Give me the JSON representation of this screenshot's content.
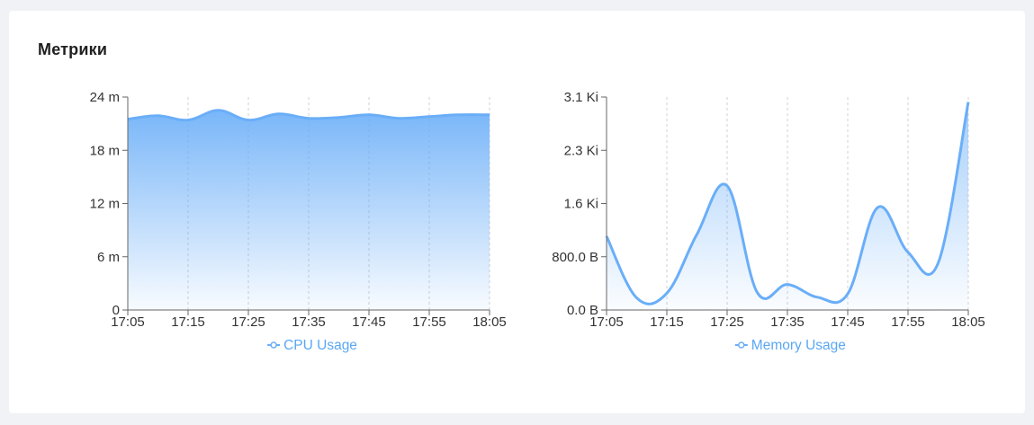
{
  "card": {
    "title": "Метрики"
  },
  "chart_data": [
    {
      "type": "area",
      "x": [
        "17:05",
        "17:10",
        "17:15",
        "17:20",
        "17:25",
        "17:30",
        "17:35",
        "17:40",
        "17:45",
        "17:50",
        "17:55",
        "18:00",
        "18:05"
      ],
      "x_ticks": [
        "17:05",
        "17:15",
        "17:25",
        "17:35",
        "17:45",
        "17:55",
        "18:05"
      ],
      "y_ticks": [
        "0",
        "6 m",
        "12 m",
        "18 m",
        "24 m"
      ],
      "ylim": [
        0,
        24
      ],
      "series": [
        {
          "name": "CPU Usage",
          "values": [
            21.5,
            21.9,
            21.4,
            22.5,
            21.4,
            22.1,
            21.6,
            21.7,
            22.0,
            21.6,
            21.8,
            22.0,
            22.0
          ]
        }
      ],
      "grid": "vertical dashed",
      "legend": "bottom-center",
      "color": "#6aaef8"
    },
    {
      "type": "area",
      "x": [
        "17:05",
        "17:10",
        "17:15",
        "17:20",
        "17:25",
        "17:30",
        "17:35",
        "17:40",
        "17:45",
        "17:50",
        "17:55",
        "18:00",
        "18:05"
      ],
      "x_ticks": [
        "17:05",
        "17:15",
        "17:25",
        "17:35",
        "17:45",
        "17:55",
        "18:05"
      ],
      "y_ticks": [
        "0.0 B",
        "800.0 B",
        "1.6 Ki",
        "2.3 Ki",
        "3.1 Ki"
      ],
      "ylim": [
        0,
        3174
      ],
      "series": [
        {
          "name": "Memory Usage",
          "values": [
            1100,
            180,
            250,
            1130,
            1850,
            260,
            380,
            190,
            240,
            1530,
            860,
            700,
            3100
          ]
        }
      ],
      "grid": "vertical dashed",
      "legend": "bottom-center",
      "color": "#6aaef8"
    }
  ]
}
